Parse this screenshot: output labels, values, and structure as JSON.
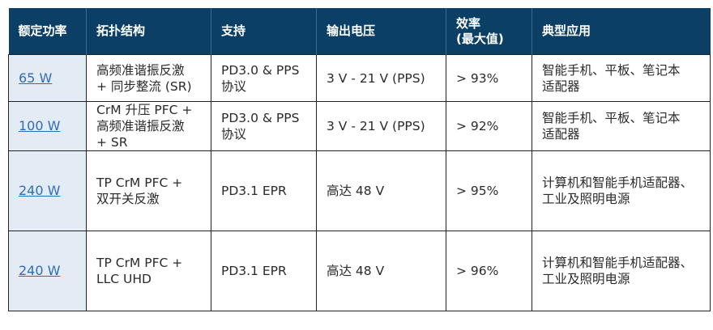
{
  "table": {
    "headers": [
      "额定功率",
      "拓扑结构",
      "支持",
      "输出电压",
      "效率\n(最大值)",
      "典型应用"
    ],
    "rows": [
      {
        "power": "65 W",
        "topology": "高频准谐振反激\n+ 同步整流 (SR)",
        "support": "PD3.0 & PPS\n协议",
        "voltage": "3 V - 21 V (PPS)",
        "efficiency": "> 93%",
        "application": "智能手机、平板、笔记本\n适配器"
      },
      {
        "power": "100 W",
        "topology": "CrM 升压 PFC +\n高频准谐振反激\n+ SR",
        "support": "PD3.0 & PPS\n协议",
        "voltage": "3 V - 21 V (PPS)",
        "efficiency": "> 92%",
        "application": "智能手机、平板、笔记本\n适配器"
      },
      {
        "power": "240 W",
        "topology": "TP CrM PFC +\n双开关反激",
        "support": "PD3.1 EPR",
        "voltage": "高达 48 V",
        "efficiency": "> 95%",
        "application": "计算机和智能手机适配器、\n工业及照明电源"
      },
      {
        "power": "240 W",
        "topology": "TP CrM PFC +\nLLC UHD",
        "support": "PD3.1 EPR",
        "voltage": "高达 48 V",
        "efficiency": "> 96%",
        "application": "计算机和智能手机适配器、\n工业及照明电源"
      }
    ]
  }
}
